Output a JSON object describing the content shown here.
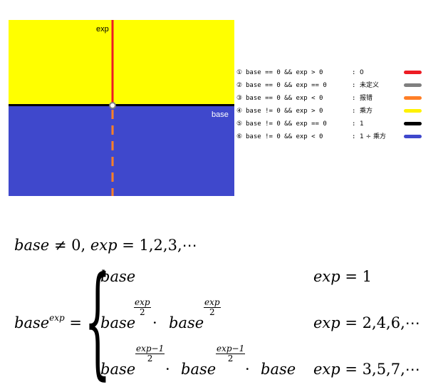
{
  "diagram": {
    "label_exp": "exp",
    "label_base": "base",
    "colors": {
      "top_region": "#ffff00",
      "bottom_region": "#3f48cc",
      "red": "#ed1c24",
      "gray": "#7f7f7f",
      "orange": "#ff7f27",
      "yellow": "#fff200",
      "black": "#000000",
      "blue": "#3f48cc"
    }
  },
  "legend": [
    {
      "num": "①",
      "cond": "base == 0 && exp > 0",
      "result": "0",
      "color": "#ed1c24"
    },
    {
      "num": "②",
      "cond": "base == 0 && exp == 0",
      "result": "未定义",
      "color": "#7f7f7f"
    },
    {
      "num": "③",
      "cond": "base == 0 && exp < 0",
      "result": "报错",
      "color": "#ff7f27"
    },
    {
      "num": "④",
      "cond": "base != 0 && exp > 0",
      "result": "乘方",
      "color": "#fff200"
    },
    {
      "num": "⑤",
      "cond": "base != 0 && exp == 0",
      "result": "1",
      "color": "#000000"
    },
    {
      "num": "⑥",
      "cond": "base != 0 && exp < 0",
      "result": "1 ÷ 乘方",
      "color": "#3f48cc"
    }
  ],
  "legend_colon": ":",
  "formula": {
    "line1_base": "base",
    "line1_ne": " ≠ 0,  ",
    "line1_exp": "exp",
    "line1_rest": " = 1,2,3,⋯",
    "lhs_base": "base",
    "lhs_sup": "exp",
    "lhs_eq": " =",
    "case1_expr": "base",
    "case1_cond_var": "exp",
    "case1_cond_rest": " = 1",
    "case2_base_a": "base",
    "case2_frac_num": "exp",
    "case2_frac_den": "2",
    "case2_dot": " · ",
    "case2_base_b": "base",
    "case2_cond_var": "exp",
    "case2_cond_rest": " = 2,4,6,⋯",
    "case3_base_a": "base",
    "case3_frac_num": "exp−1",
    "case3_frac_den": "2",
    "case3_dot": " · ",
    "case3_base_b": "base",
    "case3_dot2": " · ",
    "case3_base_c": "base",
    "case3_cond_var": "exp",
    "case3_cond_rest": " = 3,5,7,⋯"
  }
}
